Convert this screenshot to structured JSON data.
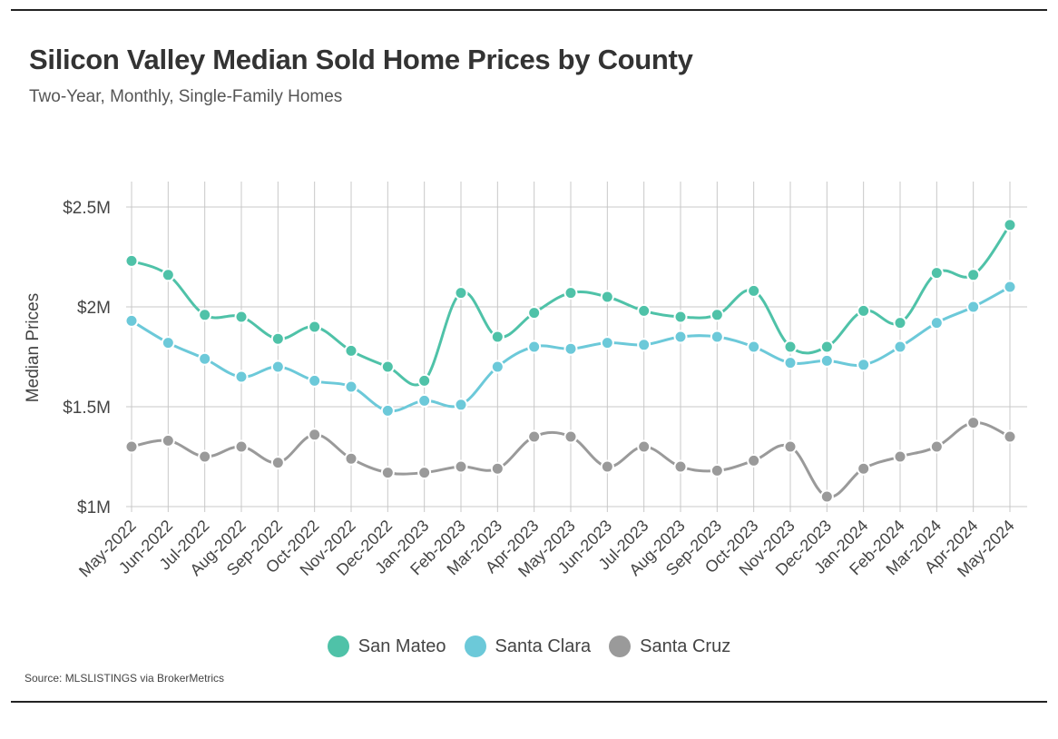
{
  "title": "Silicon Valley Median Sold Home Prices by County",
  "subtitle": "Two-Year, Monthly, Single-Family Homes",
  "source": "Source:  MLSLISTINGS via BrokerMetrics",
  "chart_data": {
    "type": "line",
    "title": "Silicon Valley Median Sold Home Prices by County",
    "subtitle": "Two-Year, Monthly, Single-Family Homes",
    "xlabel": "",
    "ylabel": "Median Prices",
    "ylim": [
      1.0,
      2.5
    ],
    "yticks": [
      1.0,
      1.5,
      2.0,
      2.5
    ],
    "ytick_labels": [
      "$1M",
      "$1.5M",
      "$2M",
      "$2.5M"
    ],
    "grid": "on",
    "legend_position": "bottom",
    "categories": [
      "May-2022",
      "Jun-2022",
      "Jul-2022",
      "Aug-2022",
      "Sep-2022",
      "Oct-2022",
      "Nov-2022",
      "Dec-2022",
      "Jan-2023",
      "Feb-2023",
      "Mar-2023",
      "Apr-2023",
      "May-2023",
      "Jun-2023",
      "Jul-2023",
      "Aug-2023",
      "Sep-2023",
      "Oct-2023",
      "Nov-2023",
      "Dec-2023",
      "Jan-2024",
      "Feb-2024",
      "Mar-2024",
      "Apr-2024",
      "May-2024"
    ],
    "series": [
      {
        "name": "San Mateo",
        "color": "#4fc2a8",
        "values": [
          2.23,
          2.16,
          1.96,
          1.95,
          1.84,
          1.9,
          1.78,
          1.7,
          1.63,
          2.07,
          1.85,
          1.97,
          2.07,
          2.05,
          1.98,
          1.95,
          1.96,
          2.08,
          1.8,
          1.8,
          1.98,
          1.92,
          2.17,
          2.16,
          2.41
        ]
      },
      {
        "name": "Santa Clara",
        "color": "#6cc9d9",
        "values": [
          1.93,
          1.82,
          1.74,
          1.65,
          1.7,
          1.63,
          1.6,
          1.48,
          1.53,
          1.51,
          1.7,
          1.8,
          1.79,
          1.82,
          1.81,
          1.85,
          1.85,
          1.8,
          1.72,
          1.73,
          1.71,
          1.8,
          1.92,
          2.0,
          2.1
        ]
      },
      {
        "name": "Santa Cruz",
        "color": "#9a9a9a",
        "values": [
          1.3,
          1.33,
          1.25,
          1.3,
          1.22,
          1.36,
          1.24,
          1.17,
          1.17,
          1.2,
          1.19,
          1.35,
          1.35,
          1.2,
          1.3,
          1.2,
          1.18,
          1.23,
          1.3,
          1.05,
          1.19,
          1.25,
          1.3,
          1.42,
          1.35
        ]
      }
    ]
  }
}
